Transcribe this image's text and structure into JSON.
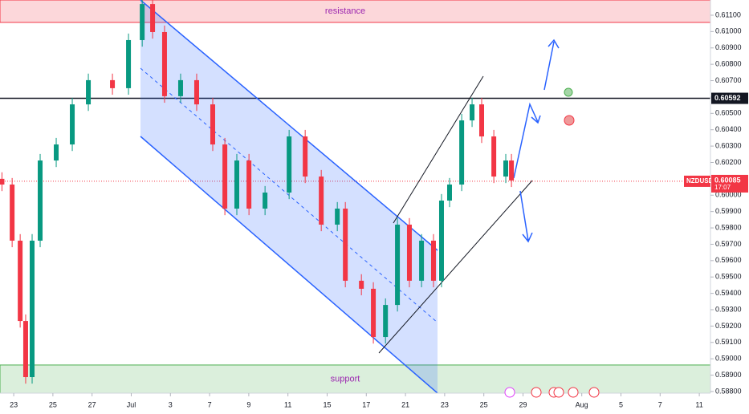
{
  "chart_data": {
    "type": "candlestick",
    "symbol": "NZDUSD",
    "countdown": "17:07",
    "up_color": "#089981",
    "down_color": "#f23645",
    "x": [
      -0.6,
      -0.08,
      0.33,
      0.61,
      0.94,
      1.35,
      2.17,
      2.99,
      3.81,
      5.04,
      5.86,
      6.56,
      7.09,
      7.7,
      8.52,
      9.34,
      10.16,
      10.78,
      11.39,
      12.01,
      12.83,
      14.06,
      14.88,
      15.7,
      16.52,
      16.93,
      17.75,
      18.36,
      18.98,
      19.59,
      20.2,
      20.82,
      21.43,
      21.84,
      22.25,
      22.87,
      23.4,
      23.89,
      24.51,
      25.12,
      25.41
    ],
    "open": [
      0.601,
      0.60065,
      0.59722,
      0.59231,
      0.58888,
      0.59722,
      0.60212,
      0.6031,
      0.60555,
      0.60703,
      0.60654,
      0.60948,
      0.61168,
      0.60997,
      0.60605,
      0.60703,
      0.60555,
      0.6031,
      0.59918,
      0.60212,
      0.59918,
      0.60016,
      0.60359,
      0.60114,
      0.5982,
      0.59918,
      0.59477,
      0.59428,
      0.59133,
      0.59329,
      0.5982,
      0.59477,
      0.59722,
      0.59477,
      0.59967,
      0.60065,
      0.60457,
      0.60555,
      0.60359,
      0.60114,
      0.60212
    ],
    "high": [
      0.6014,
      0.60105,
      0.59762,
      0.59271,
      0.59762,
      0.60252,
      0.6035,
      0.60595,
      0.60743,
      0.60743,
      0.60988,
      0.61208,
      0.61208,
      0.61037,
      0.60743,
      0.60743,
      0.60595,
      0.6035,
      0.60252,
      0.60252,
      0.60056,
      0.60399,
      0.60399,
      0.60154,
      0.59958,
      0.59958,
      0.59517,
      0.59468,
      0.59369,
      0.5986,
      0.5986,
      0.59762,
      0.59762,
      0.60007,
      0.60105,
      0.60497,
      0.60595,
      0.60595,
      0.60399,
      0.60252,
      0.60252
    ],
    "low": [
      0.60025,
      0.59682,
      0.59191,
      0.58848,
      0.58848,
      0.59682,
      0.60172,
      0.6027,
      0.60515,
      0.60614,
      0.60614,
      0.60908,
      0.60957,
      0.60565,
      0.60565,
      0.60515,
      0.6027,
      0.59878,
      0.59878,
      0.59878,
      0.59878,
      0.59976,
      0.60074,
      0.5978,
      0.5978,
      0.59437,
      0.59388,
      0.59093,
      0.59093,
      0.59289,
      0.59437,
      0.59437,
      0.59437,
      0.59437,
      0.59927,
      0.60025,
      0.60417,
      0.60319,
      0.60074,
      0.60074,
      0.6005
    ],
    "close": [
      0.60065,
      0.59722,
      0.59231,
      0.58888,
      0.59722,
      0.60212,
      0.6031,
      0.60555,
      0.60703,
      0.60654,
      0.60948,
      0.61168,
      0.60997,
      0.60605,
      0.60703,
      0.60555,
      0.6031,
      0.59918,
      0.60212,
      0.59918,
      0.60016,
      0.60359,
      0.60114,
      0.5982,
      0.59918,
      0.59477,
      0.59428,
      0.59133,
      0.59329,
      0.5982,
      0.59477,
      0.59722,
      0.59477,
      0.59967,
      0.60065,
      0.60457,
      0.60555,
      0.60359,
      0.60114,
      0.60212,
      0.6009
    ],
    "xlim": [
      -0.7,
      35.57
    ],
    "xticks": [
      {
        "value": 0,
        "label": "23"
      },
      {
        "value": 2,
        "label": "25"
      },
      {
        "value": 4,
        "label": "27"
      },
      {
        "value": 6,
        "label": "Jul"
      },
      {
        "value": 8,
        "label": "3"
      },
      {
        "value": 10,
        "label": "7"
      },
      {
        "value": 12,
        "label": "9"
      },
      {
        "value": 14,
        "label": "11"
      },
      {
        "value": 16,
        "label": "15"
      },
      {
        "value": 18,
        "label": "17"
      },
      {
        "value": 20,
        "label": "21"
      },
      {
        "value": 22,
        "label": "23"
      },
      {
        "value": 24,
        "label": "25"
      },
      {
        "value": 26,
        "label": "29"
      },
      {
        "value": 29,
        "label": "Aug"
      },
      {
        "value": 31,
        "label": "5"
      },
      {
        "value": 33,
        "label": "7"
      },
      {
        "value": 35,
        "label": "11"
      }
    ],
    "ylim": [
      0.5879,
      0.61193
    ],
    "yticks": [
      {
        "value": 0.611,
        "label": "0.61100"
      },
      {
        "value": 0.61,
        "label": "0.61000"
      },
      {
        "value": 0.609,
        "label": "0.60900"
      },
      {
        "value": 0.608,
        "label": "0.60800"
      },
      {
        "value": 0.607,
        "label": "0.60700"
      },
      {
        "value": 0.606,
        "label": "0.60600"
      },
      {
        "value": 0.605,
        "label": "0.60500"
      },
      {
        "value": 0.604,
        "label": "0.60400"
      },
      {
        "value": 0.603,
        "label": "0.60300"
      },
      {
        "value": 0.602,
        "label": "0.60200"
      },
      {
        "value": 0.601,
        "label": "0.60100"
      },
      {
        "value": 0.6,
        "label": "0.60000"
      },
      {
        "value": 0.599,
        "label": "0.59900"
      },
      {
        "value": 0.598,
        "label": "0.59800"
      },
      {
        "value": 0.597,
        "label": "0.59700"
      },
      {
        "value": 0.596,
        "label": "0.59600"
      },
      {
        "value": 0.595,
        "label": "0.59500"
      },
      {
        "value": 0.594,
        "label": "0.59400"
      },
      {
        "value": 0.593,
        "label": "0.59300"
      },
      {
        "value": 0.592,
        "label": "0.59200"
      },
      {
        "value": 0.591,
        "label": "0.59100"
      },
      {
        "value": 0.59,
        "label": "0.59000"
      },
      {
        "value": 0.589,
        "label": "0.58900"
      },
      {
        "value": 0.588,
        "label": "0.58800"
      }
    ],
    "zones": [
      {
        "name": "resistance",
        "range": [
          0.61056,
          0.61193
        ],
        "color": "#f23645"
      },
      {
        "name": "support",
        "range": [
          0.5879,
          0.58962
        ],
        "color": "#4caf50"
      }
    ],
    "level": {
      "value": 0.60592,
      "label": "0.60592"
    },
    "last_price": {
      "value": 0.60085,
      "label": "0.60085"
    }
  }
}
